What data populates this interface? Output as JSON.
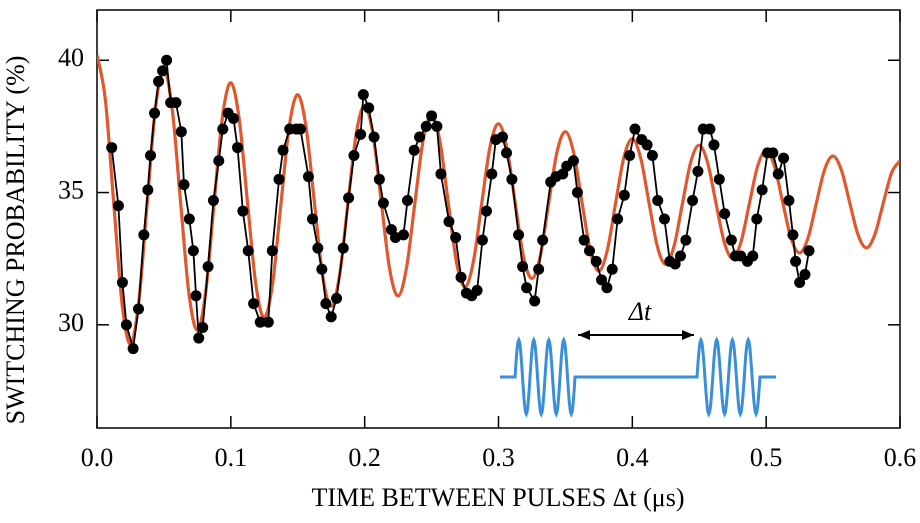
{
  "chart_data": {
    "type": "line",
    "xlabel": "TIME BETWEEN PULSES Δt (μs)",
    "ylabel": "SWITCHING PROBABILITY (%)",
    "annotations": [
      {
        "text": "Δt"
      }
    ],
    "xlim": [
      0,
      0.6
    ],
    "xticks": [
      {
        "value": 0,
        "label": "0.0"
      },
      0.1,
      0.2,
      0.3,
      0.4,
      0.5,
      0.6
    ],
    "ylim": [
      26.1,
      41.9
    ],
    "yticks": [
      30,
      35,
      40
    ],
    "grid": false,
    "series": [
      {
        "color": "#e0582e",
        "markers": false,
        "x": [
          0,
          0.00625,
          0.0125,
          0.01875,
          0.025,
          0.03125,
          0.0375,
          0.04375,
          0.05,
          0.05625,
          0.0625,
          0.06875,
          0.075,
          0.08125,
          0.0875,
          0.09375,
          0.1,
          0.10625,
          0.1125,
          0.11875,
          0.125,
          0.13125,
          0.1375,
          0.14375,
          0.15,
          0.15625,
          0.1625,
          0.16875,
          0.175,
          0.18125,
          0.1875,
          0.19375,
          0.2,
          0.20625,
          0.2125,
          0.21875,
          0.225,
          0.23125,
          0.2375,
          0.24375,
          0.25,
          0.25625,
          0.2625,
          0.26875,
          0.275,
          0.28125,
          0.2875,
          0.29375,
          0.3,
          0.30625,
          0.3125,
          0.31875,
          0.325,
          0.33125,
          0.3375,
          0.34375,
          0.35,
          0.35625,
          0.3625,
          0.36875,
          0.375,
          0.38125,
          0.3875,
          0.39375,
          0.4,
          0.40625,
          0.4125,
          0.41875,
          0.425,
          0.43125,
          0.4375,
          0.44375,
          0.45,
          0.45625,
          0.4625,
          0.46875,
          0.475,
          0.48125,
          0.4875,
          0.49375,
          0.5,
          0.50625,
          0.5125,
          0.51875,
          0.525,
          0.53125,
          0.5375,
          0.54375,
          0.55,
          0.55625,
          0.5625,
          0.56875,
          0.575,
          0.58125,
          0.5875,
          0.59375,
          0.6
        ],
        "values": [
          40.2,
          38.51,
          34.6,
          30.79,
          29.27,
          30.88,
          34.6,
          38.22,
          39.65,
          38.13,
          34.6,
          31.16,
          29.8,
          31.25,
          34.6,
          37.86,
          39.15,
          37.78,
          34.6,
          31.5,
          30.27,
          31.58,
          34.6,
          37.54,
          38.7,
          37.46,
          34.6,
          31.81,
          30.7,
          31.88,
          34.6,
          37.24,
          38.29,
          37.18,
          34.6,
          32.08,
          31.09,
          32.15,
          34.6,
          36.99,
          37.93,
          36.93,
          34.6,
          32.33,
          31.43,
          32.39,
          34.6,
          36.75,
          37.6,
          36.69,
          34.6,
          32.56,
          31.75,
          32.61,
          34.6,
          36.54,
          37.3,
          36.49,
          34.6,
          32.76,
          32.03,
          32.81,
          34.6,
          36.34,
          37.03,
          36.3,
          34.6,
          32.95,
          32.29,
          32.99,
          34.6,
          36.17,
          36.79,
          36.13,
          34.6,
          33.11,
          32.51,
          33.14,
          34.6,
          36.02,
          36.58,
          35.99,
          34.6,
          33.25,
          32.72,
          33.28,
          34.6,
          35.88,
          36.38,
          35.84,
          34.6,
          33.39,
          32.91,
          33.42,
          34.6,
          35.75,
          36.2
        ]
      },
      {
        "color": "#000000",
        "markers": true,
        "x": [
          0.011,
          0.016,
          0.019,
          0.022,
          0.027,
          0.031,
          0.035,
          0.038,
          0.04,
          0.043,
          0.046,
          0.049,
          0.052,
          0.055,
          0.059,
          0.063,
          0.065,
          0.069,
          0.072,
          0.074,
          0.076,
          0.079,
          0.083,
          0.087,
          0.091,
          0.094,
          0.098,
          0.102,
          0.105,
          0.109,
          0.113,
          0.117,
          0.122,
          0.128,
          0.131,
          0.136,
          0.139,
          0.144,
          0.149,
          0.152,
          0.158,
          0.161,
          0.165,
          0.168,
          0.171,
          0.175,
          0.179,
          0.184,
          0.188,
          0.192,
          0.197,
          0.199,
          0.203,
          0.207,
          0.211,
          0.214,
          0.22,
          0.223,
          0.229,
          0.232,
          0.237,
          0.241,
          0.246,
          0.25,
          0.254,
          0.257,
          0.263,
          0.268,
          0.272,
          0.276,
          0.28,
          0.284,
          0.288,
          0.291,
          0.295,
          0.298,
          0.303,
          0.306,
          0.31,
          0.315,
          0.318,
          0.321,
          0.327,
          0.33,
          0.333,
          0.339,
          0.343,
          0.348,
          0.351,
          0.356,
          0.359,
          0.364,
          0.368,
          0.373,
          0.377,
          0.381,
          0.385,
          0.389,
          0.394,
          0.398,
          0.402,
          0.407,
          0.411,
          0.415,
          0.419,
          0.424,
          0.428,
          0.432,
          0.436,
          0.44,
          0.445,
          0.449,
          0.453,
          0.458,
          0.461,
          0.465,
          0.469,
          0.474,
          0.477,
          0.481,
          0.486,
          0.49,
          0.493,
          0.497,
          0.501,
          0.505,
          0.509,
          0.513,
          0.517,
          0.52,
          0.522,
          0.525,
          0.529,
          0.532
        ],
        "values": [
          36.7,
          34.5,
          31.6,
          30.0,
          29.1,
          30.6,
          33.4,
          35.1,
          36.4,
          38.0,
          39.2,
          39.6,
          40.0,
          38.4,
          38.4,
          37.3,
          35.3,
          34.0,
          32.8,
          31.1,
          29.5,
          29.9,
          32.2,
          34.7,
          36.2,
          37.4,
          38.0,
          37.8,
          36.7,
          34.3,
          32.8,
          30.8,
          30.1,
          30.1,
          32.8,
          35.5,
          36.6,
          37.4,
          37.4,
          37.4,
          35.6,
          34.0,
          32.9,
          32.1,
          30.8,
          30.3,
          31.0,
          32.9,
          34.8,
          36.4,
          37.2,
          38.7,
          38.2,
          37.1,
          35.5,
          34.6,
          33.6,
          33.3,
          33.4,
          34.7,
          36.6,
          37.1,
          37.5,
          37.9,
          37.5,
          35.7,
          33.9,
          33.3,
          31.8,
          31.2,
          31.1,
          31.3,
          33.2,
          34.3,
          35.7,
          37.0,
          37.1,
          36.5,
          35.5,
          33.4,
          32.2,
          31.4,
          30.9,
          32.1,
          33.2,
          35.4,
          35.6,
          35.7,
          36.0,
          36.2,
          35.0,
          33.2,
          32.8,
          32.4,
          31.7,
          31.4,
          32.1,
          34.0,
          34.9,
          36.4,
          37.4,
          37.0,
          36.8,
          36.4,
          34.7,
          34.0,
          32.4,
          32.3,
          32.6,
          33.2,
          34.7,
          35.8,
          37.4,
          37.4,
          36.8,
          35.5,
          34.2,
          33.2,
          32.6,
          32.6,
          32.4,
          32.6,
          34.0,
          35.1,
          36.5,
          36.5,
          35.7,
          36.3,
          34.7,
          33.4,
          32.4,
          31.6,
          31.9,
          32.8
        ]
      }
    ]
  }
}
